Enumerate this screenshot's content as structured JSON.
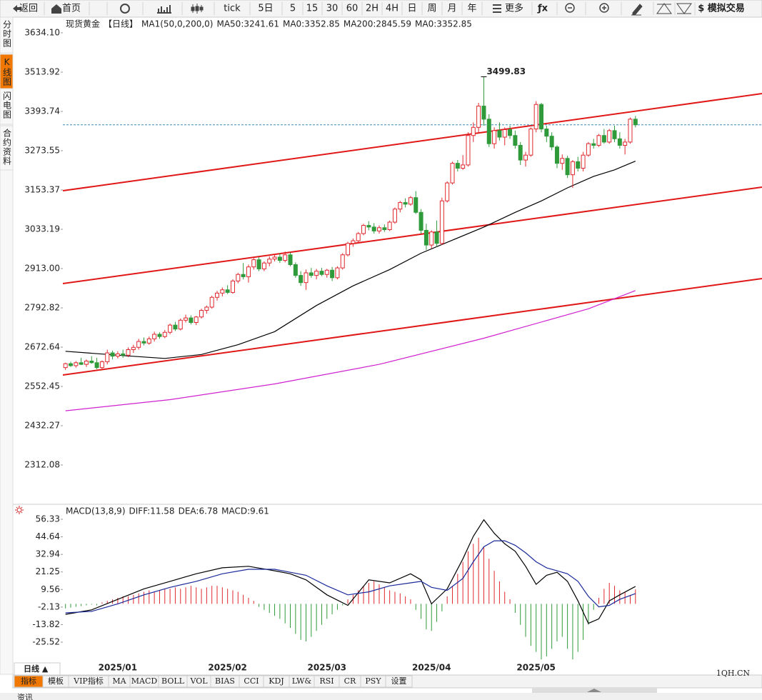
{
  "ui": {
    "toolbar": [
      "返回",
      "首页",
      "tick",
      "5日",
      "5",
      "15",
      "30",
      "60",
      "2H",
      "4H",
      "日",
      "周",
      "月",
      "年",
      "更多",
      "ƒx",
      "$ 模拟交易"
    ],
    "sidebar": [
      "分时图",
      "K线图",
      "闪电图",
      "合约资料"
    ],
    "period_tab": "日线 ▲",
    "tabs": [
      "指标",
      "模板",
      "VIP指标",
      "MA",
      "MACD",
      "BOLL",
      "VOL",
      "BIAS",
      "CCI",
      "KDJ",
      "LW&",
      "RSI",
      "CR",
      "PSY",
      "设置"
    ],
    "watermark": "1QH.CN",
    "bottom": "资讯"
  },
  "chart_data": {
    "type": "candlestick",
    "title": "现货黄金",
    "subtitle": "【日线】",
    "legend": [
      "MA1(50,0,200,0)",
      "MA50:3241.61",
      "MA0:3352.85",
      "MA200:2845.59",
      "MA0:3352.85"
    ],
    "legend_colors": [
      "#000000",
      "#000000",
      "#1a2a9a",
      "#d020d0",
      "#f08000"
    ],
    "up_color": "#e0282e",
    "down_color": "#2f9a3a",
    "ylim": [
      2205,
      3673.4
    ],
    "yticks": [
      {
        "value": 3634.1,
        "label": "3634.10"
      },
      3513.92,
      3393.74,
      3273.55,
      3153.37,
      3033.19,
      {
        "value": 2913.0,
        "label": "2913.00"
      },
      2792.82,
      2672.64,
      2552.45,
      2432.27,
      2312.08
    ],
    "xlim": [
      -0.5,
      133.2
    ],
    "xticks": [
      {
        "value": 10,
        "label": "2025/01"
      },
      {
        "value": 31,
        "label": "2025/02"
      },
      {
        "value": 50,
        "label": "2025/03"
      },
      {
        "value": 70,
        "label": "2025/04"
      },
      {
        "value": 90,
        "label": "2025/05"
      }
    ],
    "candles": [
      [
        2610,
        2625,
        2603,
        2622
      ],
      [
        2622,
        2628,
        2612,
        2616
      ],
      [
        2616,
        2630,
        2610,
        2625
      ],
      [
        2625,
        2640,
        2618,
        2620
      ],
      [
        2620,
        2635,
        2612,
        2630
      ],
      [
        2630,
        2645,
        2622,
        2625
      ],
      [
        2625,
        2640,
        2605,
        2610
      ],
      [
        2610,
        2632,
        2605,
        2628
      ],
      [
        2628,
        2665,
        2620,
        2655
      ],
      [
        2655,
        2662,
        2635,
        2645
      ],
      [
        2645,
        2660,
        2638,
        2652
      ],
      [
        2652,
        2665,
        2640,
        2648
      ],
      [
        2648,
        2672,
        2642,
        2665
      ],
      [
        2665,
        2680,
        2655,
        2672
      ],
      [
        2672,
        2698,
        2665,
        2690
      ],
      [
        2690,
        2702,
        2678,
        2685
      ],
      [
        2685,
        2705,
        2680,
        2698
      ],
      [
        2698,
        2720,
        2690,
        2712
      ],
      [
        2712,
        2718,
        2698,
        2705
      ],
      [
        2705,
        2725,
        2700,
        2718
      ],
      [
        2718,
        2745,
        2712,
        2740
      ],
      [
        2740,
        2750,
        2722,
        2728
      ],
      [
        2728,
        2760,
        2724,
        2755
      ],
      [
        2755,
        2772,
        2748,
        2762
      ],
      [
        2762,
        2770,
        2742,
        2748
      ],
      [
        2748,
        2768,
        2740,
        2765
      ],
      [
        2765,
        2790,
        2760,
        2785
      ],
      [
        2785,
        2800,
        2775,
        2795
      ],
      [
        2795,
        2830,
        2790,
        2825
      ],
      [
        2825,
        2845,
        2815,
        2838
      ],
      [
        2838,
        2855,
        2828,
        2848
      ],
      [
        2848,
        2862,
        2835,
        2840
      ],
      [
        2840,
        2880,
        2836,
        2875
      ],
      [
        2875,
        2900,
        2868,
        2895
      ],
      [
        2895,
        2930,
        2880,
        2888
      ],
      [
        2888,
        2925,
        2870,
        2918
      ],
      [
        2918,
        2945,
        2910,
        2940
      ],
      [
        2940,
        2948,
        2905,
        2912
      ],
      [
        2912,
        2935,
        2905,
        2930
      ],
      [
        2930,
        2950,
        2920,
        2942
      ],
      [
        2942,
        2958,
        2935,
        2948
      ],
      [
        2948,
        2960,
        2930,
        2938
      ],
      [
        2938,
        2965,
        2932,
        2955
      ],
      [
        2955,
        2962,
        2920,
        2925
      ],
      [
        2925,
        2932,
        2885,
        2892
      ],
      [
        2892,
        2905,
        2860,
        2870
      ],
      [
        2870,
        2910,
        2848,
        2900
      ],
      [
        2900,
        2915,
        2885,
        2892
      ],
      [
        2892,
        2912,
        2880,
        2905
      ],
      [
        2905,
        2915,
        2890,
        2895
      ],
      [
        2895,
        2912,
        2885,
        2908
      ],
      [
        2908,
        2918,
        2875,
        2885
      ],
      [
        2885,
        2920,
        2880,
        2915
      ],
      [
        2915,
        2960,
        2910,
        2955
      ],
      [
        2955,
        2995,
        2950,
        2990
      ],
      [
        2990,
        3005,
        2980,
        2998
      ],
      [
        2998,
        3025,
        2990,
        3020
      ],
      [
        3020,
        3050,
        3015,
        3045
      ],
      [
        3045,
        3058,
        3030,
        3040
      ],
      [
        3040,
        3052,
        3020,
        3028
      ],
      [
        3028,
        3045,
        3020,
        3038
      ],
      [
        3038,
        3048,
        3025,
        3032
      ],
      [
        3032,
        3060,
        3028,
        3055
      ],
      [
        3055,
        3100,
        3050,
        3095
      ],
      [
        3095,
        3120,
        3085,
        3115
      ],
      [
        3115,
        3128,
        3100,
        3110
      ],
      [
        3110,
        3135,
        3105,
        3130
      ],
      [
        3130,
        3150,
        3080,
        3085
      ],
      [
        3085,
        3095,
        3020,
        3030
      ],
      [
        3030,
        3050,
        2970,
        2985
      ],
      [
        2985,
        3030,
        2975,
        3025
      ],
      [
        3025,
        3060,
        2980,
        2990
      ],
      [
        2990,
        3130,
        2985,
        3120
      ],
      [
        3120,
        3180,
        3115,
        3175
      ],
      [
        3175,
        3240,
        3170,
        3235
      ],
      [
        3235,
        3245,
        3210,
        3220
      ],
      [
        3220,
        3260,
        3215,
        3230
      ],
      [
        3230,
        3330,
        3225,
        3320
      ],
      [
        3320,
        3360,
        3300,
        3345
      ],
      [
        3345,
        3420,
        3330,
        3410
      ],
      [
        3410,
        3499.83,
        3350,
        3370
      ],
      [
        3370,
        3385,
        3285,
        3295
      ],
      [
        3295,
        3345,
        3280,
        3335
      ],
      [
        3335,
        3360,
        3305,
        3315
      ],
      [
        3315,
        3345,
        3290,
        3338
      ],
      [
        3338,
        3350,
        3310,
        3320
      ],
      [
        3320,
        3335,
        3280,
        3290
      ],
      [
        3290,
        3300,
        3230,
        3245
      ],
      [
        3245,
        3270,
        3225,
        3260
      ],
      [
        3260,
        3345,
        3255,
        3340
      ],
      [
        3340,
        3425,
        3330,
        3415
      ],
      [
        3415,
        3420,
        3330,
        3340
      ],
      [
        3340,
        3350,
        3300,
        3318
      ],
      [
        3318,
        3330,
        3275,
        3285
      ],
      [
        3285,
        3290,
        3220,
        3235
      ],
      [
        3235,
        3262,
        3215,
        3250
      ],
      [
        3250,
        3258,
        3190,
        3200
      ],
      [
        3200,
        3245,
        3160,
        3240
      ],
      [
        3240,
        3255,
        3210,
        3220
      ],
      [
        3220,
        3270,
        3210,
        3260
      ],
      [
        3260,
        3300,
        3255,
        3295
      ],
      [
        3295,
        3310,
        3280,
        3290
      ],
      [
        3290,
        3325,
        3285,
        3320
      ],
      [
        3320,
        3340,
        3295,
        3300
      ],
      [
        3300,
        3340,
        3295,
        3335
      ],
      [
        3335,
        3350,
        3300,
        3310
      ],
      [
        3310,
        3330,
        3280,
        3290
      ],
      [
        3290,
        3310,
        3262,
        3300
      ],
      [
        3300,
        3375,
        3295,
        3370
      ],
      [
        3370,
        3380,
        3345,
        3352.85
      ]
    ],
    "lines": [
      {
        "color": "#000000",
        "x": [
          0,
          10,
          19,
          26,
          33,
          40,
          48,
          55,
          62,
          68,
          74,
          80,
          86,
          91,
          96,
          101,
          105,
          109
        ],
        "values": [
          2660,
          2648,
          2638,
          2650,
          2680,
          2720,
          2800,
          2860,
          2910,
          2960,
          3000,
          3040,
          3085,
          3120,
          3160,
          3195,
          3215,
          3241.61
        ]
      },
      {
        "color": "#d020d0",
        "x": [
          0,
          20,
          40,
          60,
          80,
          100,
          109
        ],
        "values": [
          2478,
          2512,
          2560,
          2620,
          2700,
          2790,
          2845.59
        ]
      }
    ],
    "macd": {
      "title": "MACD(13,8,9)",
      "legend": [
        "DIFF:11.58",
        "DEA:6.78",
        "MACD:9.61"
      ],
      "legend_colors": [
        "#000000",
        "#1a2a9a",
        "#d020d0"
      ],
      "ylim": [
        -40.27,
        63.47
      ],
      "yticks": [
        56.33,
        44.64,
        32.94,
        21.25,
        9.56,
        -2.13,
        -13.82,
        -25.52
      ],
      "hist": [
        -3,
        -2.5,
        -2,
        -1.5,
        -1,
        -0.5,
        -1,
        1,
        2,
        3,
        4,
        5,
        5,
        6,
        7,
        8,
        9,
        8,
        9,
        10,
        10,
        11,
        10,
        11,
        12,
        11,
        10,
        11,
        12,
        12,
        11,
        10,
        9,
        8,
        6,
        4,
        2,
        -2,
        -4,
        -6,
        -8,
        -10,
        -13,
        -16,
        -20,
        -24,
        -25,
        -22,
        -18,
        -14,
        -10,
        -7,
        -4,
        -1,
        3,
        6,
        9,
        12,
        14,
        15,
        13,
        11,
        9,
        8,
        7,
        5,
        3,
        -4,
        -10,
        -17,
        -18,
        -12,
        -5,
        5,
        12,
        20,
        28,
        35,
        40,
        44,
        38,
        30,
        22,
        15,
        8,
        3,
        -6,
        -14,
        -22,
        -28,
        -32,
        -37,
        -35,
        -30,
        -25,
        -22,
        -30,
        -37,
        -32,
        -24,
        -14,
        -4,
        4,
        10,
        14,
        12,
        9,
        8,
        6,
        9.61
      ],
      "lines": [
        {
          "color": "#000000",
          "x": [
            0,
            5,
            10,
            15,
            20,
            25,
            30,
            35,
            40,
            43,
            46,
            50,
            54,
            58,
            62,
            66,
            68,
            70,
            73,
            76,
            78,
            80,
            82,
            84,
            86,
            88,
            90,
            92,
            94,
            96,
            98,
            100,
            102,
            104,
            106,
            109
          ],
          "values": [
            -7,
            -4,
            3,
            10,
            15,
            20,
            24,
            25,
            22,
            20,
            16,
            6,
            -1,
            16,
            14,
            20,
            16,
            0,
            10,
            30,
            45,
            56,
            47,
            40,
            35,
            25,
            13,
            19,
            21,
            15,
            2,
            -13,
            -10,
            2,
            6,
            11.58
          ]
        },
        {
          "color": "#1a2a9a",
          "x": [
            0,
            5,
            10,
            15,
            20,
            25,
            30,
            35,
            40,
            43,
            46,
            50,
            54,
            58,
            62,
            66,
            68,
            70,
            73,
            76,
            78,
            80,
            82,
            84,
            86,
            88,
            90,
            92,
            94,
            96,
            98,
            100,
            102,
            104,
            106,
            109
          ],
          "values": [
            -6,
            -5,
            0,
            6,
            11,
            15,
            20,
            23,
            23,
            21,
            19,
            12,
            6,
            8,
            12,
            14,
            15,
            11,
            9,
            17,
            28,
            38,
            42,
            42,
            39,
            34,
            28,
            24,
            22,
            20,
            15,
            5,
            -2,
            -1,
            3,
            6.78
          ]
        }
      ]
    }
  }
}
